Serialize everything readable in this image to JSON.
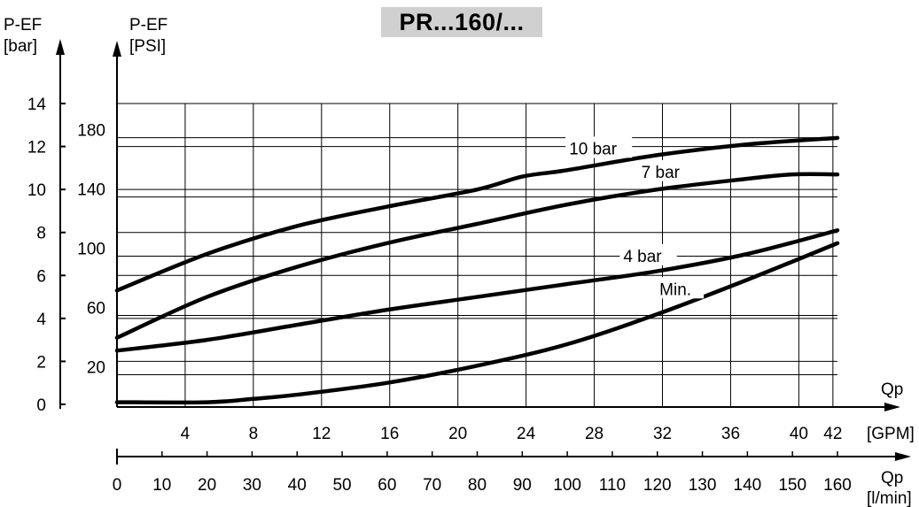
{
  "chart_data": {
    "type": "line",
    "title": "PR...160/...",
    "y_left_label": [
      "P-EF",
      "[bar]"
    ],
    "y_right_label": [
      "P-EF",
      "[PSI]"
    ],
    "y_bar_ticks": [
      0,
      2,
      4,
      6,
      8,
      10,
      12,
      14
    ],
    "y_psi_ticks": [
      20,
      60,
      100,
      140,
      180
    ],
    "ylim_bar": [
      0,
      14
    ],
    "x_gpm_label": [
      "Qp",
      "[GPM]"
    ],
    "x_gpm_ticks": [
      4,
      8,
      12,
      16,
      20,
      24,
      28,
      32,
      36,
      40,
      42
    ],
    "x_lmin_label": [
      "Qp",
      "[l/min]"
    ],
    "x_lmin_ticks": [
      0,
      10,
      20,
      30,
      40,
      50,
      60,
      70,
      80,
      90,
      100,
      110,
      120,
      130,
      140,
      150,
      160
    ],
    "xlim_lmin": [
      0,
      160
    ],
    "grid": true,
    "series": [
      {
        "name": "10 bar",
        "label_at_lmin": 107,
        "x": [
          0,
          20,
          40,
          60,
          80,
          90,
          100,
          120,
          140,
          160
        ],
        "y": [
          5.3,
          7.0,
          8.3,
          9.2,
          10.0,
          10.6,
          10.9,
          11.6,
          12.1,
          12.4
        ]
      },
      {
        "name": "7 bar",
        "label_at_lmin": 122,
        "x": [
          0,
          20,
          40,
          60,
          80,
          100,
          120,
          140,
          150,
          160
        ],
        "y": [
          3.1,
          5.0,
          6.4,
          7.5,
          8.4,
          9.3,
          10.0,
          10.5,
          10.7,
          10.7
        ]
      },
      {
        "name": "4 bar",
        "label_at_lmin": 118,
        "x": [
          0,
          20,
          40,
          60,
          80,
          100,
          120,
          140,
          160
        ],
        "y": [
          2.5,
          3.0,
          3.7,
          4.4,
          5.0,
          5.6,
          6.2,
          7.0,
          8.1
        ]
      },
      {
        "name": "Min.",
        "label_at_lmin": 125,
        "x": [
          0,
          20,
          30,
          40,
          60,
          80,
          100,
          120,
          140,
          160
        ],
        "y": [
          0.1,
          0.1,
          0.25,
          0.45,
          1.0,
          1.8,
          2.8,
          4.2,
          5.8,
          7.5
        ]
      }
    ]
  }
}
